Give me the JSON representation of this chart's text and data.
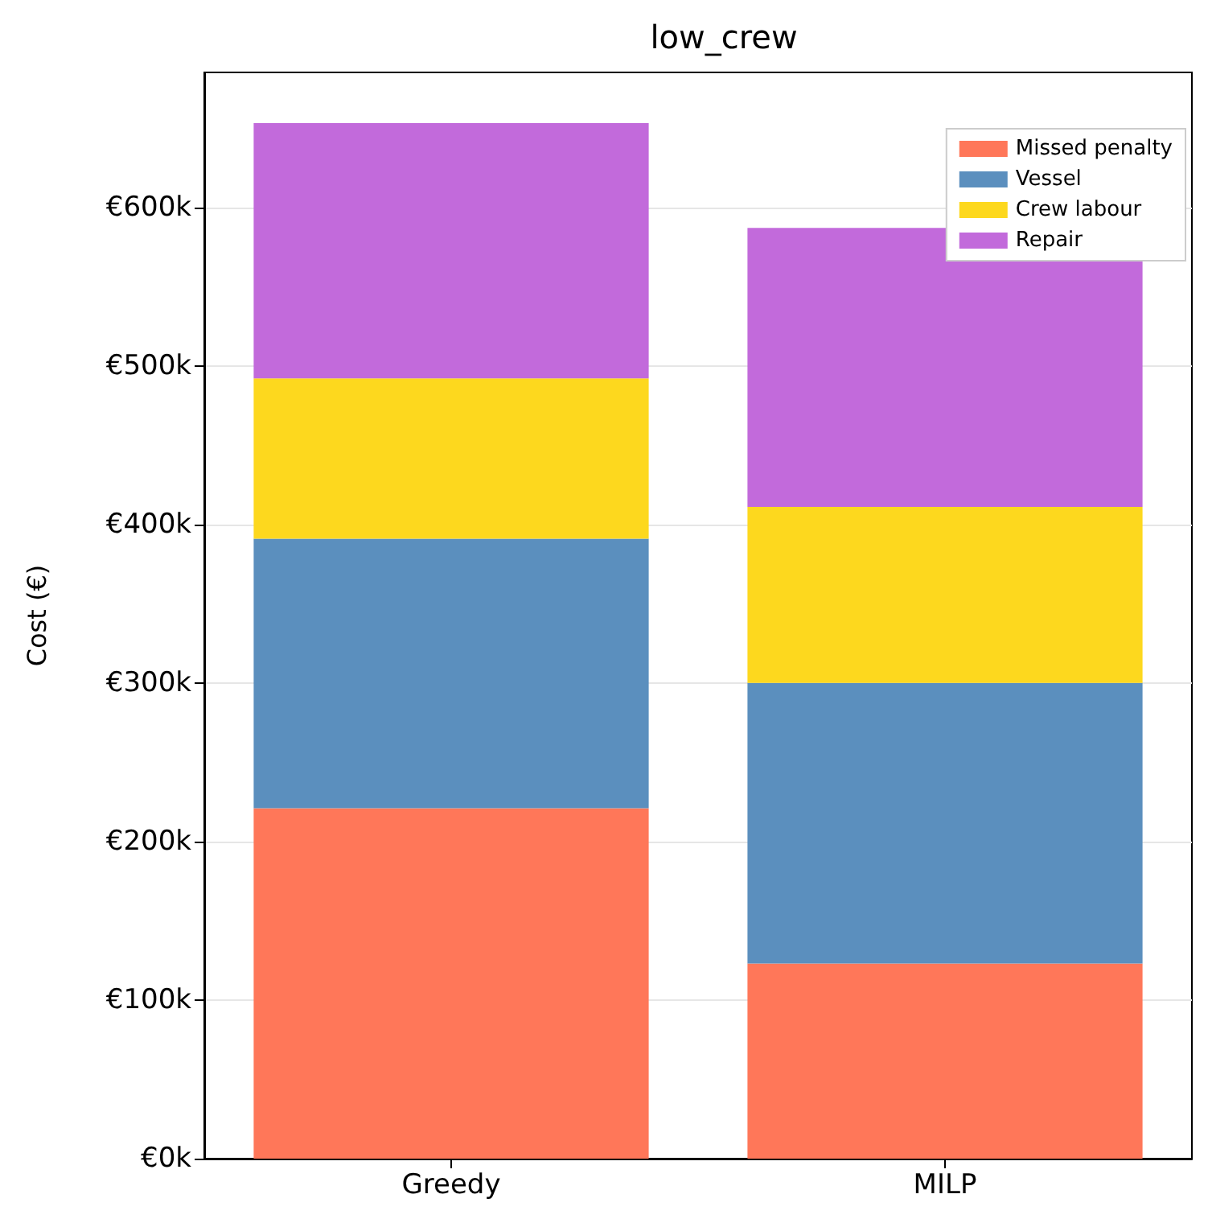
{
  "chart_data": {
    "type": "bar",
    "title": "low_crew",
    "ylabel": "Cost (€)",
    "categories": [
      "Greedy",
      "MILP"
    ],
    "series": [
      {
        "name": "Missed penalty",
        "color": "#ff7759",
        "values": [
          221000,
          123000
        ]
      },
      {
        "name": "Vessel",
        "color": "#5b8fbe",
        "values": [
          170000,
          177000
        ]
      },
      {
        "name": "Crew labour",
        "color": "#fdd81e",
        "values": [
          101000,
          111000
        ]
      },
      {
        "name": "Repair",
        "color": "#c26adb",
        "values": [
          161000,
          176000
        ]
      }
    ],
    "stacked": true,
    "ylim": [
      0,
      685000
    ],
    "yticks": [
      {
        "value": 0,
        "label": "€0k"
      },
      {
        "value": 100000,
        "label": "€100k"
      },
      {
        "value": 200000,
        "label": "€200k"
      },
      {
        "value": 300000,
        "label": "€300k"
      },
      {
        "value": 400000,
        "label": "€400k"
      },
      {
        "value": 500000,
        "label": "€500k"
      },
      {
        "value": 600000,
        "label": "€600k"
      }
    ],
    "grid": "y",
    "legend": "top right"
  }
}
